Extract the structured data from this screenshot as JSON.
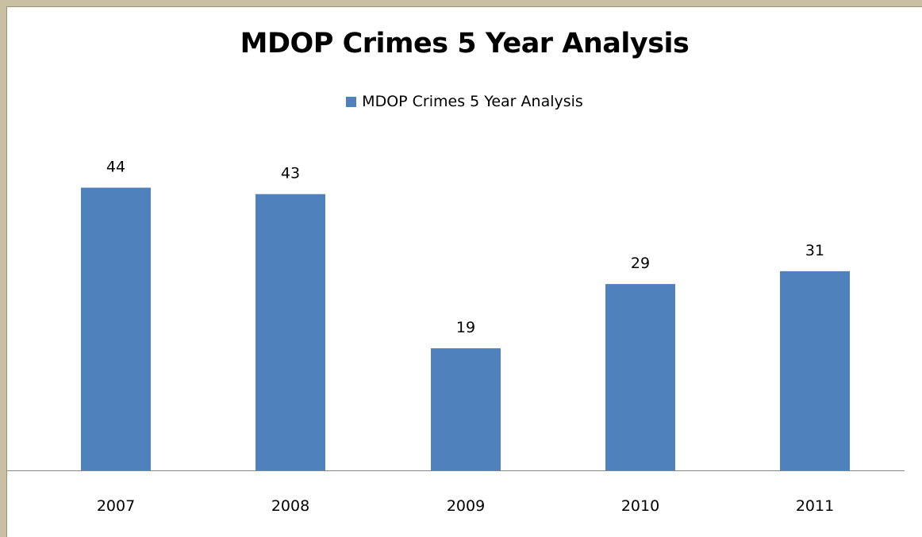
{
  "chart_data": {
    "type": "bar",
    "title": "MDOP Crimes 5 Year Analysis",
    "categories": [
      "2007",
      "2008",
      "2009",
      "2010",
      "2011"
    ],
    "series": [
      {
        "name": "MDOP Crimes 5 Year Analysis",
        "values": [
          44,
          43,
          19,
          29,
          31
        ],
        "color": "#4f81bd"
      }
    ],
    "data_labels": [
      "44",
      "43",
      "19",
      "29",
      "31"
    ],
    "xlabel": "",
    "ylabel": "",
    "ylim": [
      0,
      50
    ],
    "grid": false,
    "y_axis_visible": false,
    "legend_position": "top"
  }
}
